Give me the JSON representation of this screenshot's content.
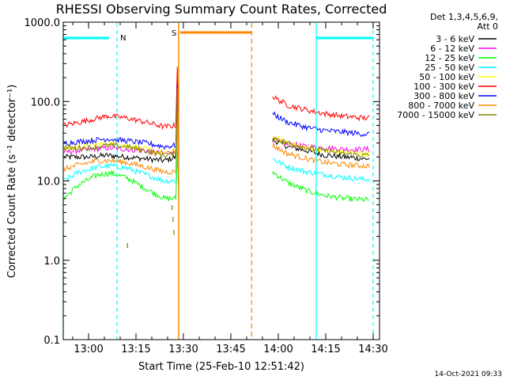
{
  "chart_data": {
    "type": "line",
    "title": "RHESSI Observing Summary Count Rates, Corrected",
    "xlabel": "Start Time (25-Feb-10 12:51:42)",
    "ylabel": "Corrected Count Rate (s⁻¹ detector⁻¹)",
    "yscale": "log",
    "ylim": [
      0.1,
      1000
    ],
    "xlim_minutes": [
      12.8667,
      14.5333
    ],
    "x_ticks": [
      {
        "min": 13.0,
        "label": "13:00"
      },
      {
        "min": 13.25,
        "label": "13:15"
      },
      {
        "min": 13.5,
        "label": "13:30"
      },
      {
        "min": 13.75,
        "label": "13:45"
      },
      {
        "min": 14.0,
        "label": "14:00"
      },
      {
        "min": 14.25,
        "label": "14:15"
      },
      {
        "min": 14.5,
        "label": "14:30"
      }
    ],
    "y_ticks": [
      {
        "v": 0.1,
        "label": "0.1"
      },
      {
        "v": 1,
        "label": "1.0"
      },
      {
        "v": 10,
        "label": "10.0"
      },
      {
        "v": 100,
        "label": "100.0"
      },
      {
        "v": 1000,
        "label": "1000.0"
      }
    ],
    "legend_header": [
      "Det 1,3,4,5,6,9,",
      "Att 0"
    ],
    "legend_position": "right",
    "series": [
      {
        "name": "3 - 6 keV",
        "color": "#000000",
        "seg1": [
          [
            12.87,
            20
          ],
          [
            13.0,
            20
          ],
          [
            13.1,
            21
          ],
          [
            13.2,
            20
          ],
          [
            13.3,
            19
          ],
          [
            13.4,
            18
          ],
          [
            13.46,
            20
          ]
        ],
        "seg2": [
          [
            13.97,
            33
          ],
          [
            14.05,
            27
          ],
          [
            14.15,
            24
          ],
          [
            14.25,
            21
          ],
          [
            14.35,
            20
          ],
          [
            14.45,
            19
          ],
          [
            14.48,
            19
          ]
        ]
      },
      {
        "name": "6 - 12 keV",
        "color": "#ff00ff",
        "seg1": [
          [
            12.87,
            23
          ],
          [
            13.0,
            25
          ],
          [
            13.1,
            26
          ],
          [
            13.2,
            25
          ],
          [
            13.3,
            24
          ],
          [
            13.4,
            22
          ],
          [
            13.46,
            24
          ]
        ],
        "seg2": [
          [
            13.97,
            33
          ],
          [
            14.05,
            29
          ],
          [
            14.15,
            27
          ],
          [
            14.25,
            26
          ],
          [
            14.35,
            25
          ],
          [
            14.45,
            25
          ],
          [
            14.48,
            25
          ]
        ]
      },
      {
        "name": "12 - 25 keV",
        "color": "#00ff00",
        "seg1": [
          [
            12.87,
            6
          ],
          [
            12.95,
            9
          ],
          [
            13.05,
            12
          ],
          [
            13.12,
            12.5
          ],
          [
            13.2,
            11
          ],
          [
            13.3,
            8
          ],
          [
            13.4,
            6
          ],
          [
            13.46,
            6
          ]
        ],
        "seg2": [
          [
            13.97,
            13
          ],
          [
            14.05,
            9.5
          ],
          [
            14.15,
            7.5
          ],
          [
            14.25,
            6.5
          ],
          [
            14.35,
            6
          ],
          [
            14.45,
            5.8
          ],
          [
            14.48,
            5.8
          ]
        ]
      },
      {
        "name": "25 - 50 keV",
        "color": "#00ffff",
        "seg1": [
          [
            12.87,
            10
          ],
          [
            12.95,
            13
          ],
          [
            13.05,
            15
          ],
          [
            13.12,
            15.5
          ],
          [
            13.2,
            14.5
          ],
          [
            13.3,
            12
          ],
          [
            13.4,
            10
          ],
          [
            13.46,
            10
          ]
        ],
        "seg2": [
          [
            13.97,
            19
          ],
          [
            14.05,
            15
          ],
          [
            14.15,
            13
          ],
          [
            14.25,
            12
          ],
          [
            14.35,
            11
          ],
          [
            14.45,
            10.5
          ],
          [
            14.48,
            10.5
          ]
        ]
      },
      {
        "name": "50 - 100 keV",
        "color": "#ffff00",
        "seg1": [
          [
            12.87,
            25
          ],
          [
            13.0,
            28
          ],
          [
            13.1,
            30
          ],
          [
            13.2,
            28
          ],
          [
            13.3,
            25
          ],
          [
            13.4,
            22
          ],
          [
            13.46,
            24
          ]
        ],
        "seg2": [
          [
            13.97,
            36
          ],
          [
            14.05,
            30
          ],
          [
            14.15,
            26
          ],
          [
            14.25,
            24
          ],
          [
            14.35,
            23
          ],
          [
            14.45,
            22
          ],
          [
            14.48,
            22
          ]
        ]
      },
      {
        "name": "100 - 300 keV",
        "color": "#ff0000",
        "seg1": [
          [
            12.87,
            50
          ],
          [
            13.0,
            58
          ],
          [
            13.1,
            66
          ],
          [
            13.2,
            62
          ],
          [
            13.3,
            55
          ],
          [
            13.4,
            48
          ],
          [
            13.46,
            50
          ]
        ],
        "seg2": [
          [
            13.97,
            115
          ],
          [
            14.05,
            90
          ],
          [
            14.15,
            78
          ],
          [
            14.25,
            70
          ],
          [
            14.35,
            65
          ],
          [
            14.45,
            62
          ],
          [
            14.48,
            62
          ]
        ]
      },
      {
        "name": "300 - 800 keV",
        "color": "#0000ff",
        "seg1": [
          [
            12.87,
            30
          ],
          [
            13.0,
            32
          ],
          [
            13.1,
            34
          ],
          [
            13.2,
            32
          ],
          [
            13.3,
            30
          ],
          [
            13.4,
            27
          ],
          [
            13.46,
            28
          ]
        ],
        "seg2": [
          [
            13.97,
            70
          ],
          [
            14.05,
            55
          ],
          [
            14.15,
            47
          ],
          [
            14.25,
            43
          ],
          [
            14.35,
            41
          ],
          [
            14.45,
            39
          ],
          [
            14.48,
            39
          ]
        ]
      },
      {
        "name": "800 - 7000 keV",
        "color": "#ff8800",
        "seg1": [
          [
            12.87,
            14
          ],
          [
            12.95,
            16
          ],
          [
            13.05,
            18
          ],
          [
            13.12,
            18
          ],
          [
            13.2,
            17
          ],
          [
            13.3,
            15
          ],
          [
            13.4,
            13
          ],
          [
            13.46,
            13
          ]
        ],
        "seg2": [
          [
            13.97,
            28
          ],
          [
            14.05,
            22
          ],
          [
            14.15,
            19
          ],
          [
            14.25,
            17
          ],
          [
            14.35,
            16
          ],
          [
            14.45,
            15.5
          ],
          [
            14.48,
            15.5
          ]
        ]
      },
      {
        "name": "7000 - 15000 keV",
        "color": "#808000",
        "seg1": [
          [
            12.87,
            26
          ],
          [
            13.0,
            26
          ],
          [
            13.1,
            28
          ],
          [
            13.2,
            27
          ],
          [
            13.3,
            24
          ],
          [
            13.4,
            21
          ],
          [
            13.46,
            22
          ]
        ],
        "seg2": [
          [
            13.97,
            35
          ],
          [
            14.05,
            30
          ],
          [
            14.15,
            26
          ],
          [
            14.25,
            24
          ],
          [
            14.35,
            22
          ],
          [
            14.45,
            21
          ],
          [
            14.48,
            21
          ]
        ]
      }
    ],
    "night_intervals": [
      {
        "label": "N",
        "start": 12.8667,
        "end": 13.15,
        "color": "#00ffff"
      },
      {
        "label": "",
        "start": 14.2,
        "end": 14.5,
        "color": "#00ffff"
      }
    ],
    "saa_intervals": [
      {
        "label": "S",
        "start": 13.475,
        "end": 13.86,
        "color": "#ff8800"
      }
    ],
    "timestamp": "14-Oct-2021 09:33"
  }
}
